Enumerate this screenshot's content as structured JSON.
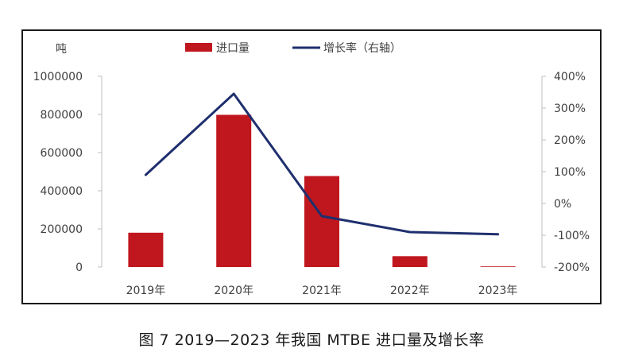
{
  "chart_data": {
    "type": "bar",
    "categories": [
      "2019年",
      "2020年",
      "2021年",
      "2022年",
      "2023年"
    ],
    "series": [
      {
        "name": "进口量",
        "kind": "bar",
        "axis": "left",
        "values": [
          180000,
          798000,
          477000,
          57000,
          2000
        ]
      },
      {
        "name": "增长率（右轴）",
        "kind": "line",
        "axis": "right",
        "values": [
          90,
          345,
          -40,
          -90,
          -97
        ]
      }
    ],
    "ylabel": "吨",
    "ylim": [
      0,
      1000000
    ],
    "y_ticks": [
      "1000000",
      "800000",
      "600000",
      "400000",
      "200000",
      "0"
    ],
    "y2lim": [
      -200,
      400
    ],
    "y2_ticks": [
      "400%",
      "300%",
      "200%",
      "100%",
      "0%",
      "-100%",
      "-200%"
    ],
    "legend_position": "top",
    "grid": false,
    "colors": {
      "bar": "#c0161e",
      "line": "#1f2f6e"
    }
  },
  "caption": "图 7  2019—2023 年我国 MTBE 进口量及增长率"
}
